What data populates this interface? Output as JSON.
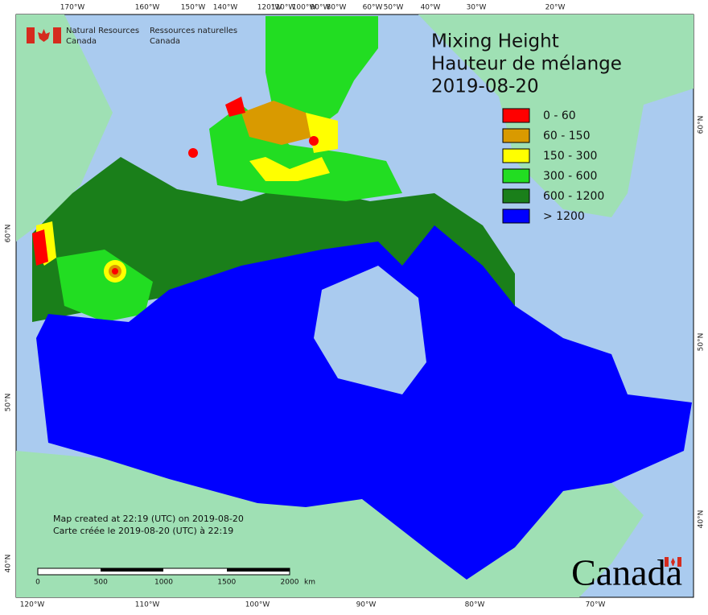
{
  "header": {
    "en": [
      "Natural Resources",
      "Canada"
    ],
    "fr": [
      "Ressources naturelles",
      "Canada"
    ]
  },
  "title": [
    "Mixing Height",
    "Hauteur de mélange",
    "2019-08-20"
  ],
  "legend": [
    {
      "label": "0 - 60",
      "color": "#ff0000"
    },
    {
      "label": "60 - 150",
      "color": "#d99a00"
    },
    {
      "label": "150 - 300",
      "color": "#ffff00"
    },
    {
      "label": "300 - 600",
      "color": "#22dd22"
    },
    {
      "label": "600 - 1200",
      "color": "#1a7f1a"
    },
    {
      "label": "> 1200",
      "color": "#0000ff"
    }
  ],
  "graticule": {
    "top": [
      "170°W",
      "160°W",
      "150°W",
      "140°W",
      "120°W",
      "110°W",
      "100°W",
      "90°W",
      "80°W",
      "60°W",
      "50°W",
      "40°W",
      "30°W",
      "20°W"
    ],
    "bottom": [
      "120°W",
      "110°W",
      "100°W",
      "90°W",
      "80°W",
      "70°W"
    ],
    "left": [
      "60°N",
      "50°N",
      "40°N"
    ],
    "right": [
      "60°N",
      "50°N",
      "40°N"
    ]
  },
  "footer": [
    "Map created at 22:19 (UTC) on 2019-08-20",
    "Carte créée le 2019-08-20 (UTC) à 22:19"
  ],
  "scale_bar": {
    "labels": [
      "0",
      "500",
      "1000",
      "1500",
      "2000"
    ],
    "unit": "km"
  },
  "wordmark": "Canada"
}
